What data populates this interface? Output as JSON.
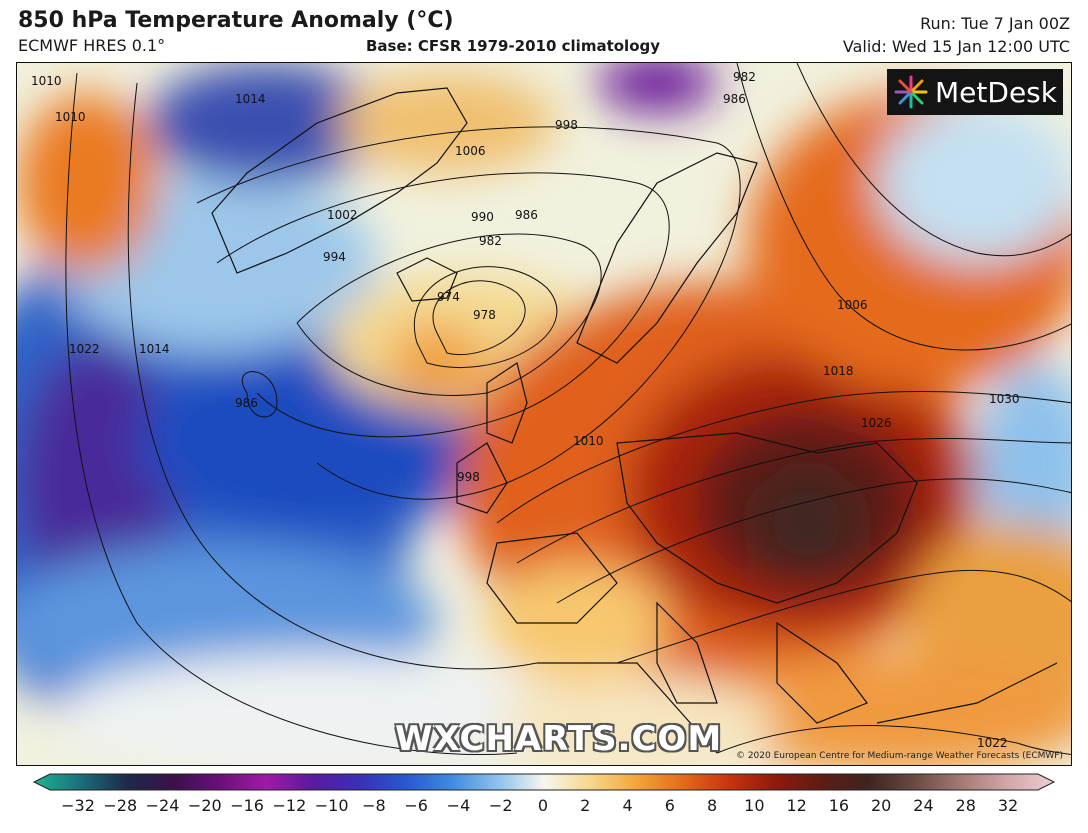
{
  "header": {
    "title": "850 hPa Temperature Anomaly (°C)",
    "model": "ECMWF HRES 0.1°",
    "base": "Base: CFSR 1979-2010 climatology",
    "run": "Run: Tue 7 Jan 00Z",
    "valid": "Valid: Wed 15 Jan 12:00 UTC"
  },
  "branding": {
    "logo": "MetDesk",
    "watermark": "WXCHARTS.COM",
    "copyright": "© 2020 European Centre for Medium-range Weather Forecasts (ECMWF)"
  },
  "isobar_labels": [
    "1010",
    "1010",
    "1014",
    "1006",
    "998",
    "1002",
    "994",
    "990",
    "986",
    "982",
    "974",
    "978",
    "986",
    "1022",
    "1014",
    "998",
    "1010",
    "1006",
    "1018",
    "1026",
    "1030",
    "1022",
    "986",
    "982"
  ],
  "colorbar": {
    "ticks": [
      "−32",
      "−28",
      "−24",
      "−20",
      "−16",
      "−12",
      "−10",
      "−8",
      "−6",
      "−4",
      "−2",
      "0",
      "2",
      "4",
      "6",
      "8",
      "10",
      "12",
      "16",
      "20",
      "24",
      "28",
      "32"
    ],
    "colors": [
      "#1fb58f",
      "#1a6f7c",
      "#1d2a4a",
      "#3a1049",
      "#6a0f7a",
      "#a01aa6",
      "#5a1aa0",
      "#3a2fb8",
      "#2658d0",
      "#3f8ae0",
      "#8ec1ec",
      "#f6f6ee",
      "#f7d78a",
      "#f3a43b",
      "#e56a1a",
      "#c8330f",
      "#8e1a0c",
      "#5e1c14",
      "#3f2420",
      "#6b4a44",
      "#a57a75",
      "#d4a6a8",
      "#eacfd2"
    ]
  }
}
